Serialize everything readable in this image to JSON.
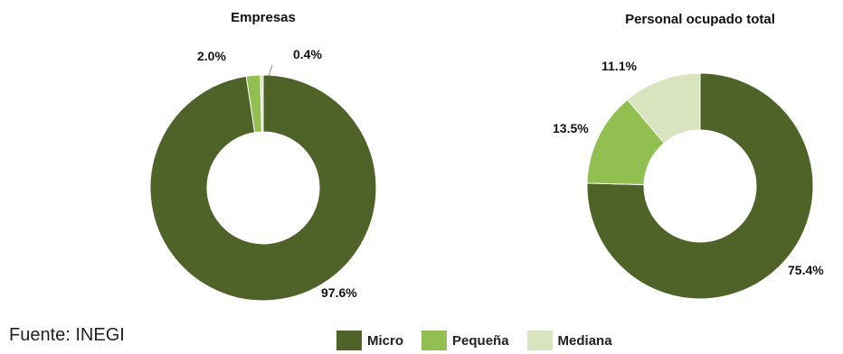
{
  "chart_data": [
    {
      "type": "pie",
      "title": "Empresas",
      "unit": "%",
      "categories": [
        "Micro",
        "Pequeña",
        "Mediana"
      ],
      "values": [
        97.6,
        2.0,
        0.4
      ],
      "labels": [
        "97.6%",
        "2.0%",
        "0.4%"
      ],
      "colors": [
        "#4f6228",
        "#92c050",
        "#d7e4bd"
      ]
    },
    {
      "type": "pie",
      "title": "Personal ocupado total",
      "unit": "%",
      "categories": [
        "Micro",
        "Pequeña",
        "Mediana"
      ],
      "values": [
        75.4,
        13.5,
        11.1
      ],
      "labels": [
        "75.4%",
        "13.5%",
        "11.1%"
      ],
      "colors": [
        "#4f6228",
        "#92c050",
        "#d7e4bd"
      ]
    }
  ],
  "legend": {
    "placement": "bottom",
    "items": [
      {
        "label": "Micro",
        "color": "#4f6228"
      },
      {
        "label": "Pequeña",
        "color": "#92c050"
      },
      {
        "label": "Mediana",
        "color": "#d7e4bd"
      }
    ]
  },
  "source": "Fuente: INEGI"
}
